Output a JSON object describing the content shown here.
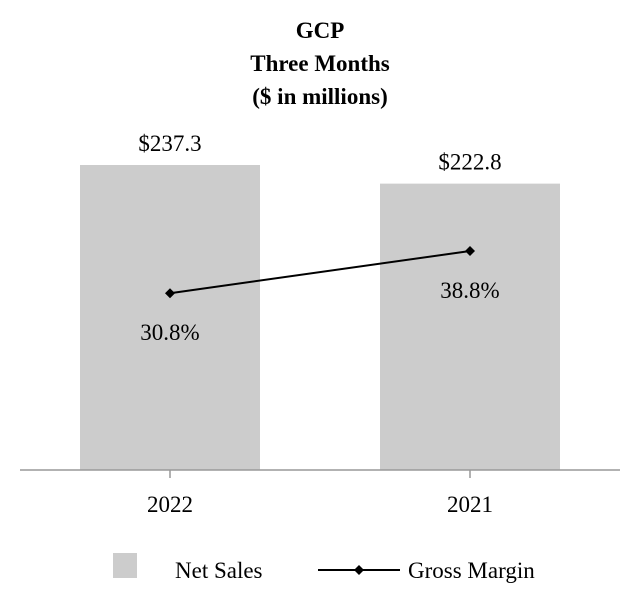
{
  "chart_data": {
    "type": "bar",
    "title_lines": [
      "GCP",
      "Three Months",
      "($ in millions)"
    ],
    "categories": [
      "2022",
      "2021"
    ],
    "series": [
      {
        "name": "Net Sales",
        "kind": "bar",
        "values": [
          237.3,
          222.8
        ],
        "labels": [
          "$237.3",
          "$222.8"
        ],
        "color": "#cccccc"
      },
      {
        "name": "Gross Margin",
        "kind": "line",
        "values": [
          30.8,
          38.8
        ],
        "labels": [
          "30.8%",
          "38.8%"
        ],
        "color": "#000000"
      }
    ],
    "bar_axis_max": 237.3,
    "margin_axis_range": [
      -2.7,
      55.1
    ],
    "grid": false,
    "legend_position": "bottom"
  }
}
